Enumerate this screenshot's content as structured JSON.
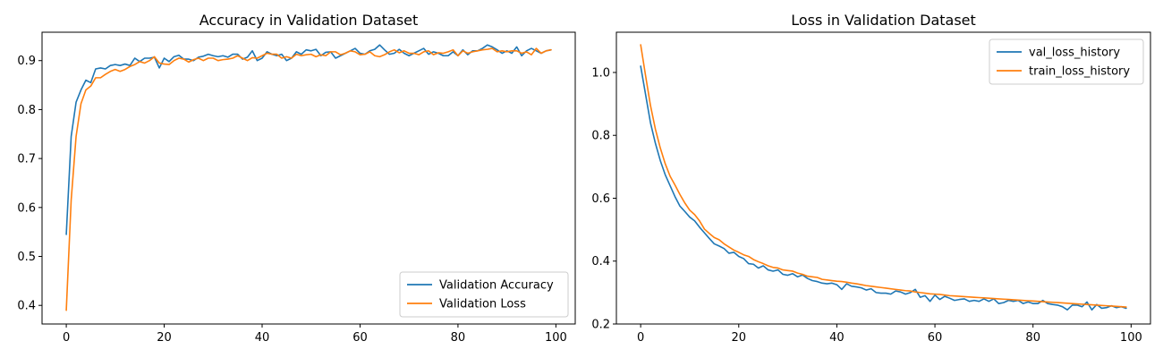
{
  "chart_data": [
    {
      "type": "line",
      "title": "Accuracy in Validation Dataset",
      "xlabel": "",
      "ylabel": "",
      "xlim": [
        -4.95,
        103.95
      ],
      "ylim": [
        0.362,
        0.958
      ],
      "xticks": [
        0,
        20,
        40,
        60,
        80,
        100
      ],
      "yticks": [
        0.4,
        0.5,
        0.6,
        0.7,
        0.8,
        0.9
      ],
      "ytick_decimals": 1,
      "grid": false,
      "legend_position": "lower-right",
      "x": [
        0,
        1,
        2,
        3,
        4,
        5,
        6,
        7,
        8,
        9,
        10,
        11,
        12,
        13,
        14,
        15,
        16,
        17,
        18,
        19,
        20,
        21,
        22,
        23,
        24,
        25,
        26,
        27,
        28,
        29,
        30,
        31,
        32,
        33,
        34,
        35,
        36,
        37,
        38,
        39,
        40,
        41,
        42,
        43,
        44,
        45,
        46,
        47,
        48,
        49,
        50,
        51,
        52,
        53,
        54,
        55,
        56,
        57,
        58,
        59,
        60,
        61,
        62,
        63,
        64,
        65,
        66,
        67,
        68,
        69,
        70,
        71,
        72,
        73,
        74,
        75,
        76,
        77,
        78,
        79,
        80,
        81,
        82,
        83,
        84,
        85,
        86,
        87,
        88,
        89,
        90,
        91,
        92,
        93,
        94,
        95,
        96,
        97,
        98,
        99
      ],
      "series": [
        {
          "name": "Validation Accuracy",
          "color": "#1f77b4",
          "values": [
            0.545,
            0.745,
            0.815,
            0.84,
            0.86,
            0.855,
            0.883,
            0.885,
            0.883,
            0.89,
            0.892,
            0.89,
            0.893,
            0.89,
            0.905,
            0.898,
            0.905,
            0.905,
            0.907,
            0.885,
            0.905,
            0.898,
            0.908,
            0.911,
            0.903,
            0.903,
            0.9,
            0.907,
            0.909,
            0.913,
            0.91,
            0.908,
            0.91,
            0.907,
            0.913,
            0.913,
            0.903,
            0.907,
            0.92,
            0.9,
            0.905,
            0.918,
            0.913,
            0.91,
            0.913,
            0.9,
            0.905,
            0.918,
            0.913,
            0.922,
            0.92,
            0.923,
            0.91,
            0.917,
            0.918,
            0.905,
            0.91,
            0.915,
            0.92,
            0.925,
            0.915,
            0.913,
            0.92,
            0.923,
            0.932,
            0.922,
            0.913,
            0.915,
            0.923,
            0.915,
            0.91,
            0.915,
            0.92,
            0.925,
            0.913,
            0.918,
            0.915,
            0.91,
            0.91,
            0.918,
            0.91,
            0.922,
            0.912,
            0.92,
            0.92,
            0.925,
            0.932,
            0.928,
            0.922,
            0.915,
            0.92,
            0.915,
            0.928,
            0.91,
            0.92,
            0.925,
            0.92,
            0.915,
            0.92,
            0.922
          ]
        },
        {
          "name": "Validation Loss",
          "color": "#ff7f0e",
          "values": [
            0.39,
            0.615,
            0.745,
            0.812,
            0.84,
            0.848,
            0.865,
            0.865,
            0.872,
            0.878,
            0.882,
            0.878,
            0.882,
            0.888,
            0.892,
            0.898,
            0.895,
            0.9,
            0.908,
            0.895,
            0.893,
            0.892,
            0.9,
            0.905,
            0.903,
            0.897,
            0.902,
            0.905,
            0.9,
            0.905,
            0.905,
            0.9,
            0.902,
            0.903,
            0.905,
            0.91,
            0.905,
            0.9,
            0.906,
            0.905,
            0.91,
            0.915,
            0.913,
            0.913,
            0.905,
            0.908,
            0.905,
            0.913,
            0.91,
            0.912,
            0.913,
            0.908,
            0.912,
            0.91,
            0.918,
            0.918,
            0.912,
            0.915,
            0.92,
            0.918,
            0.912,
            0.913,
            0.918,
            0.91,
            0.908,
            0.912,
            0.918,
            0.922,
            0.916,
            0.92,
            0.915,
            0.915,
            0.912,
            0.918,
            0.92,
            0.912,
            0.916,
            0.915,
            0.918,
            0.922,
            0.91,
            0.92,
            0.915,
            0.918,
            0.92,
            0.922,
            0.923,
            0.925,
            0.918,
            0.92,
            0.918,
            0.92,
            0.92,
            0.915,
            0.918,
            0.912,
            0.925,
            0.915,
            0.92,
            0.922
          ]
        }
      ]
    },
    {
      "type": "line",
      "title": "Loss in Validation Dataset",
      "xlabel": "",
      "ylabel": "",
      "xlim": [
        -4.95,
        103.95
      ],
      "ylim": [
        0.2,
        1.128
      ],
      "xticks": [
        0,
        20,
        40,
        60,
        80,
        100
      ],
      "yticks": [
        0.2,
        0.4,
        0.6,
        0.8,
        1.0
      ],
      "ytick_decimals": 1,
      "grid": false,
      "legend_position": "upper-right",
      "x": [
        0,
        1,
        2,
        3,
        4,
        5,
        6,
        7,
        8,
        9,
        10,
        11,
        12,
        13,
        14,
        15,
        16,
        17,
        18,
        19,
        20,
        21,
        22,
        23,
        24,
        25,
        26,
        27,
        28,
        29,
        30,
        31,
        32,
        33,
        34,
        35,
        36,
        37,
        38,
        39,
        40,
        41,
        42,
        43,
        44,
        45,
        46,
        47,
        48,
        49,
        50,
        51,
        52,
        53,
        54,
        55,
        56,
        57,
        58,
        59,
        60,
        61,
        62,
        63,
        64,
        65,
        66,
        67,
        68,
        69,
        70,
        71,
        72,
        73,
        74,
        75,
        76,
        77,
        78,
        79,
        80,
        81,
        82,
        83,
        84,
        85,
        86,
        87,
        88,
        89,
        90,
        91,
        92,
        93,
        94,
        95,
        96,
        97,
        98,
        99
      ],
      "series": [
        {
          "name": "val_loss_history",
          "color": "#1f77b4",
          "values": [
            1.02,
            0.93,
            0.84,
            0.775,
            0.72,
            0.675,
            0.64,
            0.605,
            0.575,
            0.558,
            0.54,
            0.528,
            0.508,
            0.49,
            0.472,
            0.455,
            0.448,
            0.44,
            0.425,
            0.428,
            0.415,
            0.408,
            0.392,
            0.39,
            0.378,
            0.385,
            0.372,
            0.368,
            0.372,
            0.358,
            0.355,
            0.36,
            0.35,
            0.356,
            0.345,
            0.338,
            0.335,
            0.33,
            0.328,
            0.33,
            0.325,
            0.31,
            0.328,
            0.32,
            0.318,
            0.315,
            0.308,
            0.312,
            0.3,
            0.298,
            0.298,
            0.295,
            0.305,
            0.302,
            0.295,
            0.3,
            0.31,
            0.285,
            0.29,
            0.272,
            0.292,
            0.278,
            0.288,
            0.282,
            0.275,
            0.278,
            0.28,
            0.272,
            0.275,
            0.272,
            0.28,
            0.272,
            0.28,
            0.265,
            0.268,
            0.275,
            0.272,
            0.275,
            0.265,
            0.27,
            0.265,
            0.265,
            0.275,
            0.265,
            0.262,
            0.26,
            0.255,
            0.245,
            0.26,
            0.26,
            0.255,
            0.27,
            0.245,
            0.262,
            0.25,
            0.252,
            0.258,
            0.252,
            0.255,
            0.25
          ]
        },
        {
          "name": "train_loss_history",
          "color": "#ff7f0e",
          "values": [
            1.088,
            0.99,
            0.895,
            0.82,
            0.76,
            0.71,
            0.67,
            0.642,
            0.612,
            0.585,
            0.562,
            0.548,
            0.528,
            0.502,
            0.488,
            0.475,
            0.468,
            0.455,
            0.445,
            0.435,
            0.428,
            0.42,
            0.415,
            0.405,
            0.398,
            0.392,
            0.385,
            0.38,
            0.378,
            0.372,
            0.37,
            0.368,
            0.362,
            0.358,
            0.352,
            0.35,
            0.348,
            0.342,
            0.34,
            0.338,
            0.336,
            0.335,
            0.333,
            0.33,
            0.328,
            0.325,
            0.322,
            0.32,
            0.318,
            0.316,
            0.314,
            0.312,
            0.31,
            0.308,
            0.306,
            0.305,
            0.302,
            0.3,
            0.298,
            0.296,
            0.295,
            0.294,
            0.292,
            0.29,
            0.289,
            0.288,
            0.287,
            0.286,
            0.285,
            0.284,
            0.283,
            0.282,
            0.281,
            0.28,
            0.279,
            0.278,
            0.277,
            0.276,
            0.275,
            0.274,
            0.273,
            0.272,
            0.271,
            0.27,
            0.269,
            0.268,
            0.267,
            0.266,
            0.265,
            0.264,
            0.263,
            0.262,
            0.261,
            0.26,
            0.259,
            0.258,
            0.257,
            0.256,
            0.255,
            0.254
          ]
        }
      ]
    }
  ]
}
